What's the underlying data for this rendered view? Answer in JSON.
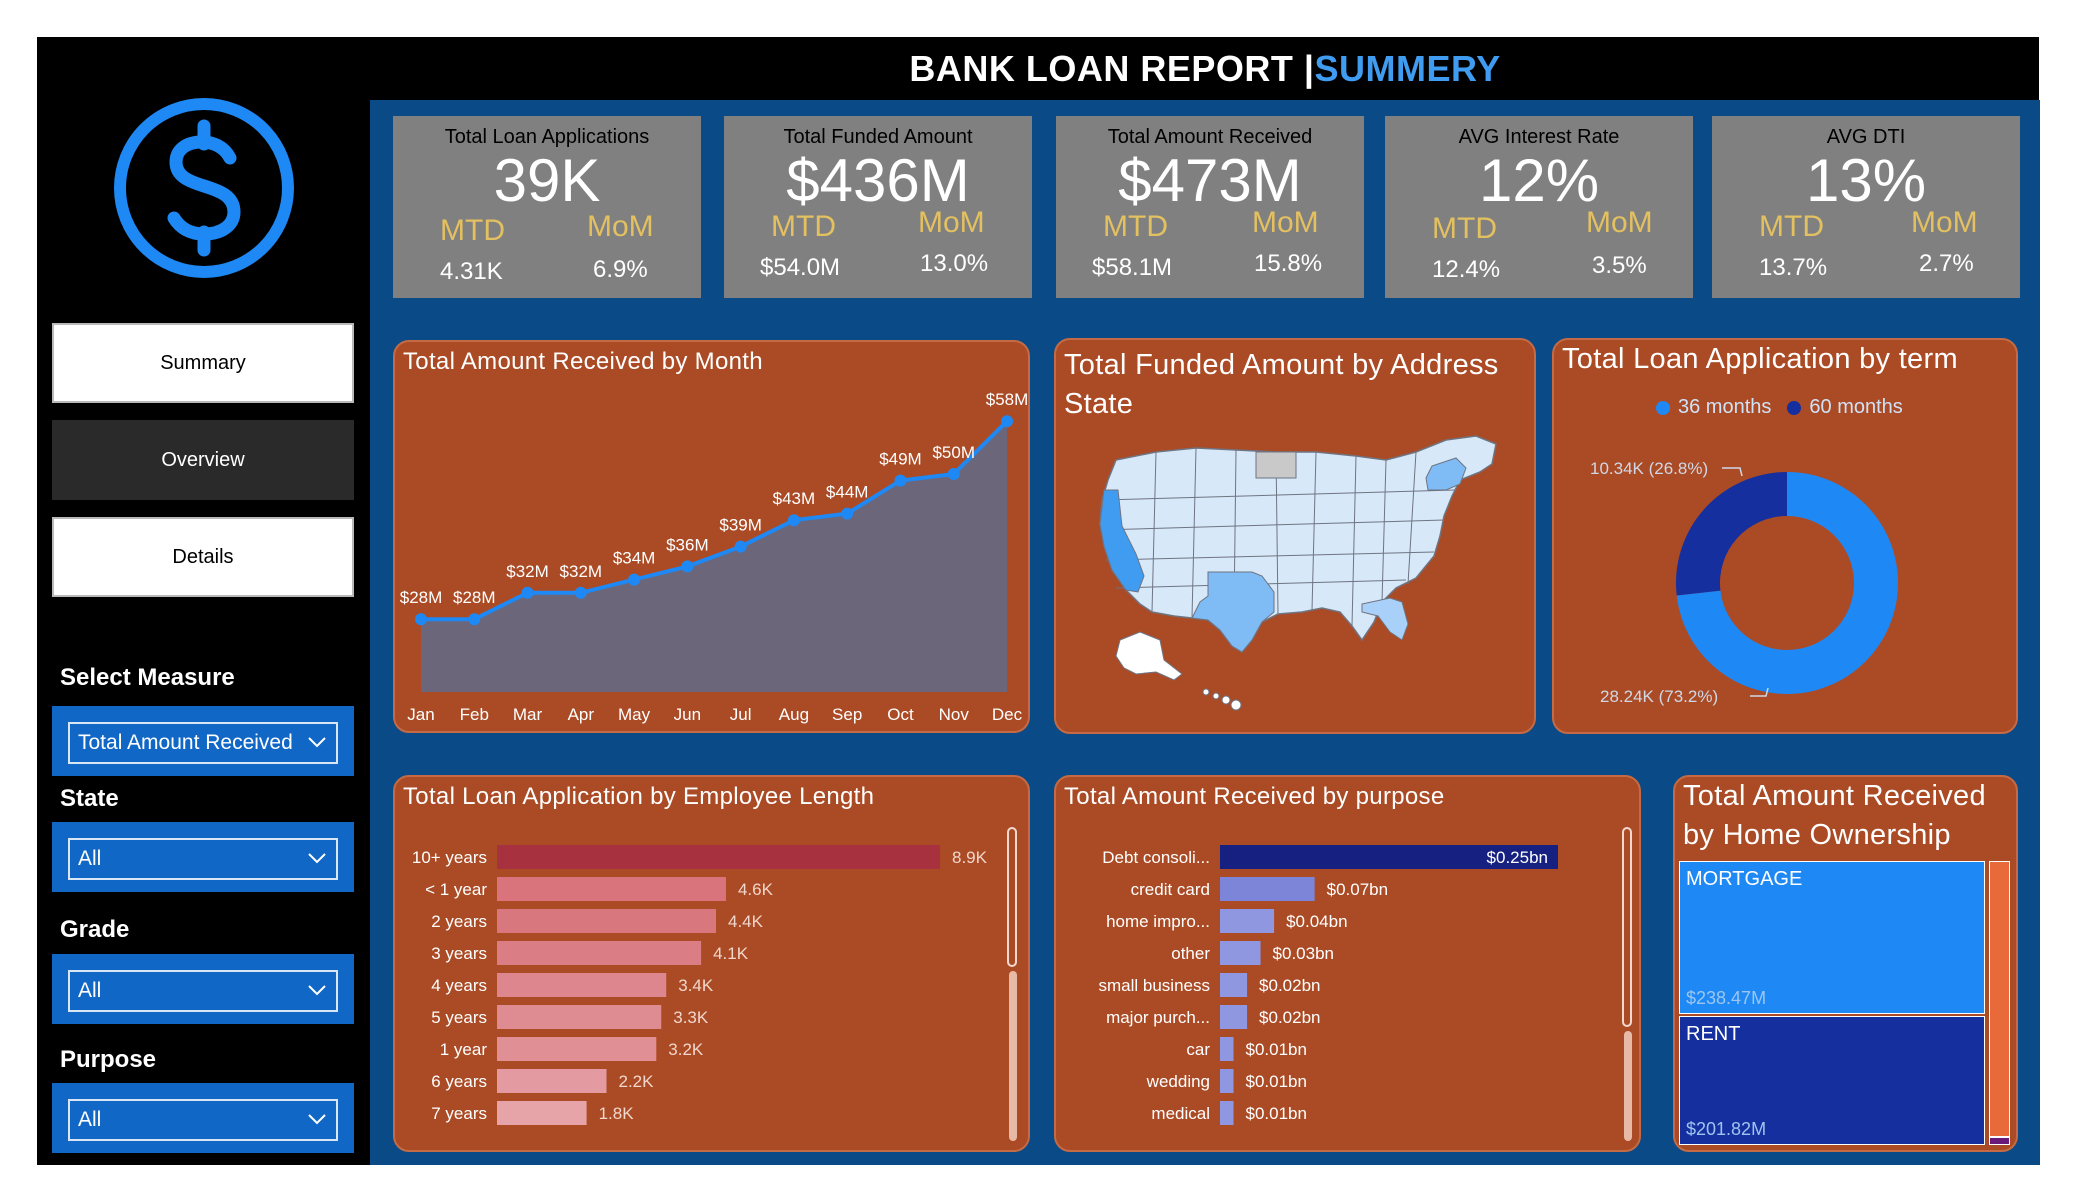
{
  "header": {
    "title": "BANK LOAN REPORT | ",
    "title_accent": "SUMMERY"
  },
  "nav": {
    "items": [
      "Summary",
      "Overview",
      "Details"
    ]
  },
  "filters": [
    {
      "label": "Select Measure",
      "value": "Total Amount Received"
    },
    {
      "label": "State",
      "value": "All"
    },
    {
      "label": "Grade",
      "value": "All"
    },
    {
      "label": "Purpose",
      "value": "All"
    }
  ],
  "kpis": [
    {
      "label": "Total Loan Applications",
      "value": "39K",
      "mtd_label": "MTD",
      "mom_label": "MoM",
      "mtd": "4.31K",
      "mom": "6.9%"
    },
    {
      "label": "Total Funded Amount",
      "value": "$436M",
      "mtd_label": "MTD",
      "mom_label": "MoM",
      "mtd": "$54.0M",
      "mom": "13.0%"
    },
    {
      "label": "Total Amount Received",
      "value": "$473M",
      "mtd_label": "MTD",
      "mom_label": "MoM",
      "mtd": "$58.1M",
      "mom": "15.8%"
    },
    {
      "label": "AVG Interest Rate",
      "value": "12%",
      "mtd_label": "MTD",
      "mom_label": "MoM",
      "mtd": "12.4%",
      "mom": "3.5%"
    },
    {
      "label": "AVG DTI",
      "value": "13%",
      "mtd_label": "MTD",
      "mom_label": "MoM",
      "mtd": "13.7%",
      "mom": "2.7%"
    }
  ],
  "panels": {
    "by_month": "Total Amount Received by Month",
    "by_state": "Total Funded Amount by Address State",
    "by_term": "Total Loan Application by term",
    "by_emp_length": "Total Loan Application by Employee Length",
    "by_purpose": "Total Amount Received by purpose",
    "by_home": "Total Amount Received by Home Ownership"
  },
  "chart_data": [
    {
      "type": "area",
      "title": "Total Amount Received by Month",
      "categories": [
        "Jan",
        "Feb",
        "Mar",
        "Apr",
        "May",
        "Jun",
        "Jul",
        "Aug",
        "Sep",
        "Oct",
        "Nov",
        "Dec"
      ],
      "values": [
        28,
        28,
        32,
        32,
        34,
        36,
        39,
        43,
        44,
        49,
        50,
        58
      ],
      "labels": [
        "$28M",
        "$28M",
        "$32M",
        "$32M",
        "$34M",
        "$36M",
        "$39M",
        "$43M",
        "$44M",
        "$49M",
        "$50M",
        "$58M"
      ],
      "unit": "M",
      "colors": {
        "line": "#1e88f5",
        "fill": "#6b667a"
      }
    },
    {
      "type": "map",
      "title": "Total Funded Amount by Address State",
      "highlighted": [
        "CA",
        "TX",
        "NY",
        "FL"
      ]
    },
    {
      "type": "pie",
      "title": "Total Loan Application by term",
      "legend": [
        "36 months",
        "60 months"
      ],
      "values": [
        28.24,
        10.34
      ],
      "labels": [
        "28.24K (73.2%)",
        "10.34K (26.8%)"
      ],
      "colors": [
        "#1e88f5",
        "#152f9e"
      ]
    },
    {
      "type": "bar",
      "title": "Total Loan Application by Employee Length",
      "categories": [
        "10+ years",
        "< 1 year",
        "2 years",
        "3 years",
        "4 years",
        "5 years",
        "1 year",
        "6 years",
        "7 years"
      ],
      "values": [
        8.9,
        4.6,
        4.4,
        4.1,
        3.4,
        3.3,
        3.2,
        2.2,
        1.8
      ],
      "labels": [
        "8.9K",
        "4.6K",
        "4.4K",
        "4.1K",
        "3.4K",
        "3.3K",
        "3.2K",
        "2.2K",
        "1.8K"
      ]
    },
    {
      "type": "bar",
      "title": "Total Amount Received by purpose",
      "categories": [
        "Debt consoli...",
        "credit card",
        "home impro...",
        "other",
        "small business",
        "major purch...",
        "car",
        "wedding",
        "medical"
      ],
      "values": [
        0.25,
        0.07,
        0.04,
        0.03,
        0.02,
        0.02,
        0.01,
        0.01,
        0.01
      ],
      "labels": [
        "$0.25bn",
        "$0.07bn",
        "$0.04bn",
        "$0.03bn",
        "$0.02bn",
        "$0.02bn",
        "$0.01bn",
        "$0.01bn",
        "$0.01bn"
      ]
    },
    {
      "type": "treemap",
      "title": "Total Amount Received by Home Ownership",
      "categories": [
        "MORTGAGE",
        "RENT"
      ],
      "values": [
        238.47,
        201.82
      ],
      "labels": [
        "$238.47M",
        "$201.82M"
      ],
      "colors": [
        "#1e88f5",
        "#152f9e",
        "#e8693a"
      ]
    }
  ]
}
